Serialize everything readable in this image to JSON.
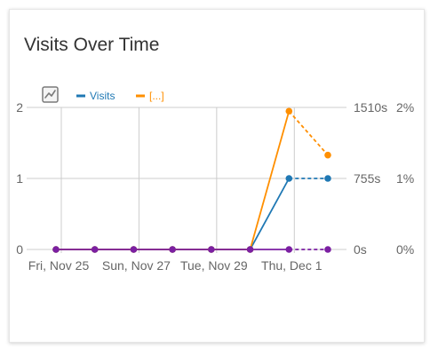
{
  "widget": {
    "title": "Visits Over Time",
    "chart_type_icon": "evolution-graph-icon"
  },
  "chart_data": {
    "type": "line",
    "x": [
      "2022-11-25",
      "2022-11-26",
      "2022-11-27",
      "2022-11-28",
      "2022-11-29",
      "2022-11-30",
      "2022-12-01",
      "2022-12-02"
    ],
    "x_tick_labels": [
      {
        "date": "2022-11-25",
        "label": "Fri, Nov 25"
      },
      {
        "date": "2022-11-27",
        "label": "Sun, Nov 27"
      },
      {
        "date": "2022-11-29",
        "label": "Tue, Nov 29"
      },
      {
        "date": "2022-12-01",
        "label": "Thu, Dec 1"
      }
    ],
    "xlim": [
      "2022-11-25",
      "2022-12-02"
    ],
    "incomplete_from_index": 6,
    "grid": true,
    "legend_position": "top-left",
    "axes": [
      {
        "id": "left",
        "position": "left",
        "ylim": [
          0,
          2
        ],
        "ticks": [
          0,
          1,
          2
        ],
        "tick_labels": [
          "0",
          "1",
          "2"
        ]
      },
      {
        "id": "right1",
        "position": "right",
        "ylim": [
          0,
          1510
        ],
        "ticks": [
          0,
          755,
          1510
        ],
        "tick_labels": [
          "0s",
          "755s",
          "1510s"
        ]
      },
      {
        "id": "right2",
        "position": "right-outer",
        "ylim": [
          0,
          2
        ],
        "ticks": [
          0,
          1,
          2
        ],
        "tick_labels": [
          "0%",
          "1%",
          "2%"
        ]
      }
    ],
    "series": [
      {
        "name": "Visits",
        "axis": "left",
        "color": "#1f78b4",
        "values": [
          0,
          0,
          0,
          0,
          0,
          0,
          1,
          1
        ]
      },
      {
        "name": "[...]",
        "axis": "right1",
        "color": "#ff8f00",
        "values": [
          0,
          0,
          0,
          0,
          0,
          0,
          1470,
          1003
        ]
      },
      {
        "name": "",
        "axis": "right2",
        "color": "#7b1fa2",
        "values": [
          0,
          0,
          0,
          0,
          0,
          0,
          0,
          0
        ]
      }
    ]
  }
}
